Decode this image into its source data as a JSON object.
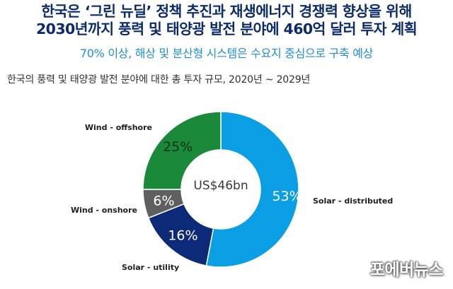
{
  "headline": {
    "line1": "한국은 ‘그린 뉴딜’ 정책 추진과 재생에너지 경쟁력 향상을 위해",
    "line2": "2030년까지 풍력 및 태양광 발전 분야에 460억 달러 투자 계획"
  },
  "subtitle": "70% 이상, 해상 및 분산형 시스템은 수요지 중심으로 구축 예상",
  "watermark": "포에버뉴스",
  "chart_data": {
    "type": "pie",
    "title": "한국의  풍력 및 태양광 발전 분야에 대한 총 투자 규모, 2020년 ~ 2029년",
    "center_label": "US$46bn",
    "donut": true,
    "slices": [
      {
        "label": "Solar - distributed",
        "value": 53,
        "value_label": "53%",
        "color": "#0a9fe4"
      },
      {
        "label": "Solar - utility",
        "value": 16,
        "value_label": "16%",
        "color": "#0c2a78"
      },
      {
        "label": "Wind - onshore",
        "value": 6,
        "value_label": "6%",
        "color": "#5f5f5f"
      },
      {
        "label": "Wind - offshore",
        "value": 25,
        "value_label": "25%",
        "color": "#1a8a3a"
      }
    ]
  }
}
